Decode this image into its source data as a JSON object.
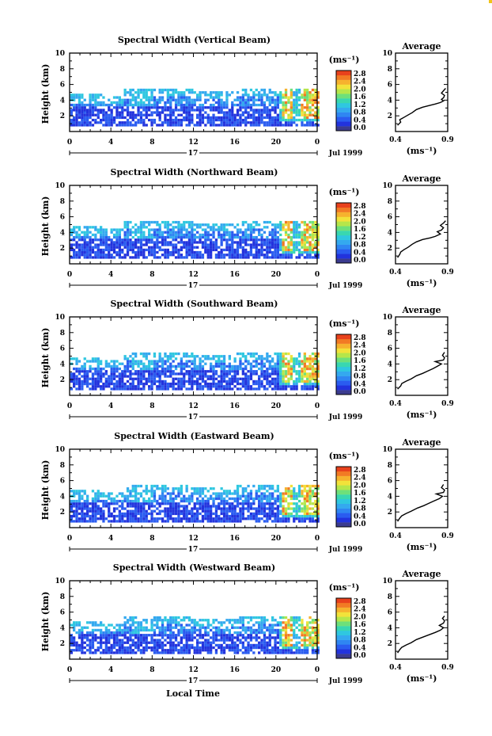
{
  "chart_data": [
    {
      "type": "heatmap",
      "title": "Spectral Width (Vertical Beam)",
      "ylabel": "Height (km)",
      "ylim": [
        0,
        10
      ],
      "yticks": [
        "2",
        "4",
        "6",
        "8",
        "10"
      ],
      "xlim": [
        0,
        24
      ],
      "xticks": [
        "0",
        "4",
        "8",
        "12",
        "16",
        "20",
        "0"
      ],
      "day_label": "17",
      "date_label": "Jul 1999",
      "colorbar": {
        "unit": "(ms⁻¹)",
        "ticks": [
          "0.0",
          "0.4",
          "0.8",
          "1.2",
          "1.6",
          "2.0",
          "2.4",
          "2.8"
        ]
      },
      "average": {
        "title": "Average",
        "xlim": [
          0.4,
          0.9
        ],
        "xticks": [
          "0.4",
          "0.9"
        ],
        "xlabel": "(ms⁻¹)",
        "profile": [
          [
            0.42,
            0.8
          ],
          [
            0.45,
            1.2
          ],
          [
            0.44,
            1.5
          ],
          [
            0.48,
            1.8
          ],
          [
            0.52,
            2.1
          ],
          [
            0.56,
            2.4
          ],
          [
            0.6,
            2.8
          ],
          [
            0.66,
            3.1
          ],
          [
            0.72,
            3.3
          ],
          [
            0.78,
            3.5
          ],
          [
            0.83,
            3.7
          ],
          [
            0.86,
            3.9
          ],
          [
            0.84,
            4.1
          ],
          [
            0.86,
            4.3
          ],
          [
            0.87,
            4.6
          ],
          [
            0.84,
            4.9
          ],
          [
            0.86,
            5.2
          ],
          [
            0.88,
            5.5
          ]
        ]
      }
    },
    {
      "type": "heatmap",
      "title": "Spectral Width (Northward Beam)",
      "ylabel": "Height (km)",
      "ylim": [
        0,
        10
      ],
      "yticks": [
        "2",
        "4",
        "6",
        "8",
        "10"
      ],
      "xlim": [
        0,
        24
      ],
      "xticks": [
        "0",
        "4",
        "8",
        "12",
        "16",
        "20",
        "0"
      ],
      "day_label": "17",
      "date_label": "Jul 1999",
      "colorbar": {
        "unit": "(ms⁻¹)",
        "ticks": [
          "0.0",
          "0.4",
          "0.8",
          "1.2",
          "1.6",
          "2.0",
          "2.4",
          "2.8"
        ]
      },
      "average": {
        "title": "Average",
        "xlim": [
          0.4,
          0.9
        ],
        "xticks": [
          "0.4",
          "0.9"
        ],
        "xlabel": "(ms⁻¹)",
        "profile": [
          [
            0.42,
            0.8
          ],
          [
            0.44,
            1.2
          ],
          [
            0.45,
            1.5
          ],
          [
            0.48,
            1.8
          ],
          [
            0.52,
            2.1
          ],
          [
            0.56,
            2.5
          ],
          [
            0.6,
            2.8
          ],
          [
            0.66,
            3.1
          ],
          [
            0.73,
            3.3
          ],
          [
            0.78,
            3.5
          ],
          [
            0.83,
            3.8
          ],
          [
            0.8,
            4.1
          ],
          [
            0.84,
            4.3
          ],
          [
            0.86,
            4.6
          ],
          [
            0.83,
            4.9
          ],
          [
            0.86,
            5.2
          ],
          [
            0.88,
            5.5
          ]
        ]
      }
    },
    {
      "type": "heatmap",
      "title": "Spectral Width (Southward Beam)",
      "ylabel": "Height (km)",
      "ylim": [
        0,
        10
      ],
      "yticks": [
        "2",
        "4",
        "6",
        "8",
        "10"
      ],
      "xlim": [
        0,
        24
      ],
      "xticks": [
        "0",
        "4",
        "8",
        "12",
        "16",
        "20",
        "0"
      ],
      "day_label": "17",
      "date_label": "Jul 1999",
      "colorbar": {
        "unit": "(ms⁻¹)",
        "ticks": [
          "0.0",
          "0.4",
          "0.8",
          "1.2",
          "1.6",
          "2.0",
          "2.4",
          "2.8"
        ]
      },
      "average": {
        "title": "Average",
        "xlim": [
          0.4,
          0.9
        ],
        "xticks": [
          "0.4",
          "0.9"
        ],
        "xlabel": "(ms⁻¹)",
        "profile": [
          [
            0.42,
            0.8
          ],
          [
            0.45,
            1.2
          ],
          [
            0.46,
            1.5
          ],
          [
            0.5,
            1.8
          ],
          [
            0.55,
            2.1
          ],
          [
            0.6,
            2.5
          ],
          [
            0.66,
            2.8
          ],
          [
            0.71,
            3.1
          ],
          [
            0.76,
            3.4
          ],
          [
            0.8,
            3.7
          ],
          [
            0.84,
            4.0
          ],
          [
            0.78,
            4.3
          ],
          [
            0.86,
            4.5
          ],
          [
            0.87,
            4.8
          ],
          [
            0.85,
            5.1
          ],
          [
            0.87,
            5.5
          ]
        ]
      }
    },
    {
      "type": "heatmap",
      "title": "Spectral Width (Eastward Beam)",
      "ylabel": "Height (km)",
      "ylim": [
        0,
        10
      ],
      "yticks": [
        "2",
        "4",
        "6",
        "8",
        "10"
      ],
      "xlim": [
        0,
        24
      ],
      "xticks": [
        "0",
        "4",
        "8",
        "12",
        "16",
        "20",
        "0"
      ],
      "day_label": "17",
      "date_label": "Jul 1999",
      "colorbar": {
        "unit": "(ms⁻¹)",
        "ticks": [
          "0.0",
          "0.4",
          "0.8",
          "1.2",
          "1.6",
          "2.0",
          "2.4",
          "2.8"
        ]
      },
      "average": {
        "title": "Average",
        "xlim": [
          0.4,
          0.9
        ],
        "xticks": [
          "0.4",
          "0.9"
        ],
        "xlabel": "(ms⁻¹)",
        "profile": [
          [
            0.42,
            0.8
          ],
          [
            0.44,
            1.2
          ],
          [
            0.46,
            1.5
          ],
          [
            0.5,
            1.8
          ],
          [
            0.55,
            2.1
          ],
          [
            0.61,
            2.5
          ],
          [
            0.67,
            2.8
          ],
          [
            0.72,
            3.1
          ],
          [
            0.77,
            3.4
          ],
          [
            0.82,
            3.7
          ],
          [
            0.85,
            4.0
          ],
          [
            0.79,
            4.3
          ],
          [
            0.86,
            4.5
          ],
          [
            0.87,
            4.8
          ],
          [
            0.84,
            5.1
          ],
          [
            0.86,
            5.5
          ]
        ]
      }
    },
    {
      "type": "heatmap",
      "title": "Spectral Width (Westward Beam)",
      "ylabel": "Height (km)",
      "ylim": [
        0,
        10
      ],
      "yticks": [
        "2",
        "4",
        "6",
        "8",
        "10"
      ],
      "xlim": [
        0,
        24
      ],
      "xticks": [
        "0",
        "4",
        "8",
        "12",
        "16",
        "20",
        "0"
      ],
      "day_label": "17",
      "date_label": "Jul 1999",
      "colorbar": {
        "unit": "(ms⁻¹)",
        "ticks": [
          "0.0",
          "0.4",
          "0.8",
          "1.2",
          "1.6",
          "2.0",
          "2.4",
          "2.8"
        ]
      },
      "average": {
        "title": "Average",
        "xlim": [
          0.4,
          0.9
        ],
        "xticks": [
          "0.4",
          "0.9"
        ],
        "xlabel": "(ms⁻¹)",
        "profile": [
          [
            0.42,
            0.8
          ],
          [
            0.44,
            1.2
          ],
          [
            0.46,
            1.5
          ],
          [
            0.5,
            1.8
          ],
          [
            0.55,
            2.1
          ],
          [
            0.6,
            2.5
          ],
          [
            0.66,
            2.8
          ],
          [
            0.72,
            3.1
          ],
          [
            0.78,
            3.4
          ],
          [
            0.83,
            3.7
          ],
          [
            0.86,
            4.0
          ],
          [
            0.82,
            4.3
          ],
          [
            0.86,
            4.6
          ],
          [
            0.87,
            4.9
          ],
          [
            0.85,
            5.2
          ],
          [
            0.87,
            5.5
          ]
        ]
      }
    }
  ],
  "figure": {
    "xlabel": "Local Time"
  },
  "colormap": [
    "#3b3b8f",
    "#2233dd",
    "#2a5cf0",
    "#2f86f2",
    "#34a9ef",
    "#2fc7e0",
    "#39d7b0",
    "#6ee07a",
    "#b6e64a",
    "#f2e23a",
    "#f6b22e",
    "#f27a24",
    "#e8411c"
  ]
}
